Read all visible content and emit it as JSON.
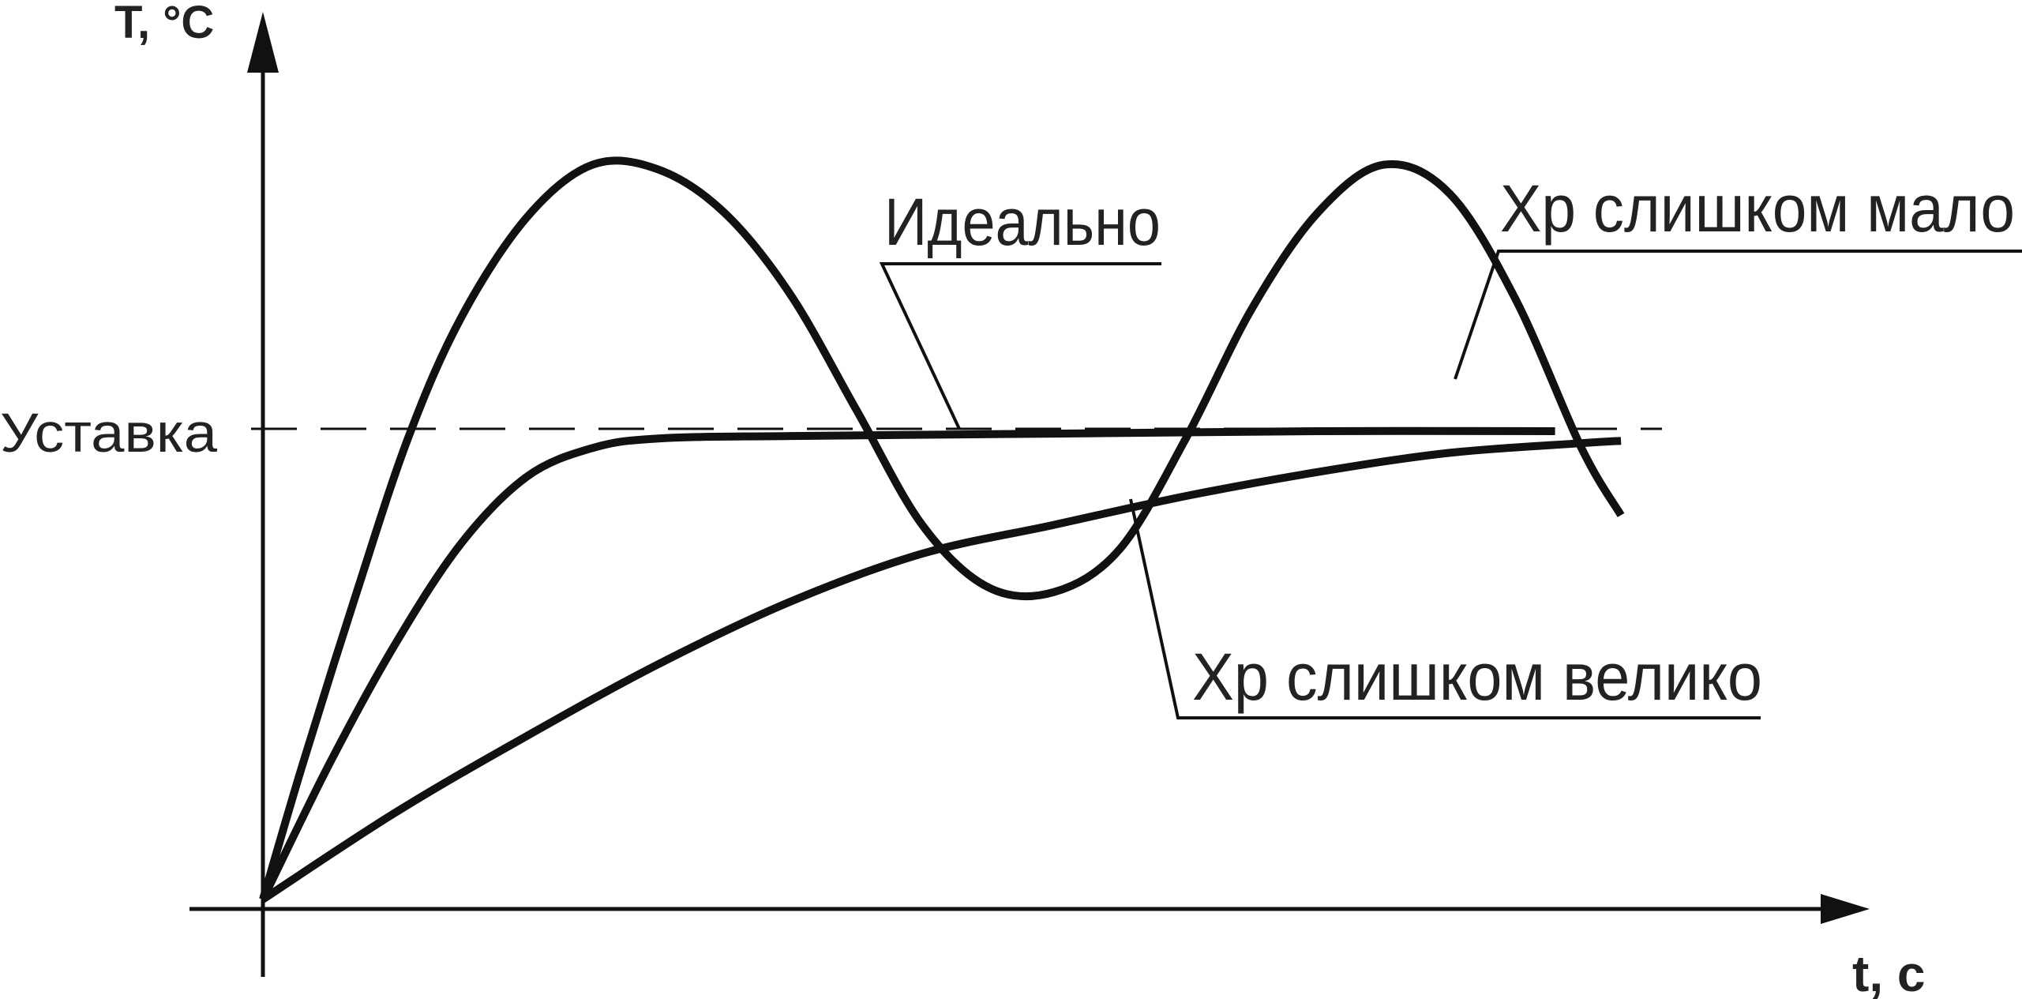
{
  "chart_data": {
    "type": "line",
    "ylabel": "T, °C",
    "xlabel": "t, с",
    "setpoint": {
      "label": "Уставка",
      "y": 1.0,
      "style": "dashed"
    },
    "x_range": [
      0,
      10
    ],
    "y_range": [
      0,
      1.8
    ],
    "grid": false,
    "series": [
      {
        "name": "Идеально",
        "stroke_width": 10,
        "points": [
          [
            0,
            0.02
          ],
          [
            0.5,
            0.3
          ],
          [
            1.0,
            0.55
          ],
          [
            1.5,
            0.76
          ],
          [
            2.0,
            0.9
          ],
          [
            2.5,
            0.96
          ],
          [
            3.0,
            0.98
          ],
          [
            4.0,
            0.985
          ],
          [
            6.0,
            0.99
          ],
          [
            8.0,
            0.995
          ],
          [
            9.8,
            0.995
          ]
        ]
      },
      {
        "name": "Хр слишком мало",
        "stroke_width": 10,
        "points": [
          [
            0,
            0.02
          ],
          [
            0.3,
            0.3
          ],
          [
            0.7,
            0.65
          ],
          [
            1.1,
            0.98
          ],
          [
            1.5,
            1.23
          ],
          [
            2.0,
            1.44
          ],
          [
            2.5,
            1.55
          ],
          [
            3.0,
            1.54
          ],
          [
            3.5,
            1.45
          ],
          [
            4.0,
            1.28
          ],
          [
            4.5,
            1.04
          ],
          [
            5.0,
            0.8
          ],
          [
            5.5,
            0.67
          ],
          [
            6.0,
            0.66
          ],
          [
            6.5,
            0.75
          ],
          [
            7.0,
            0.98
          ],
          [
            7.5,
            1.25
          ],
          [
            8.0,
            1.45
          ],
          [
            8.5,
            1.55
          ],
          [
            9.0,
            1.49
          ],
          [
            9.5,
            1.27
          ],
          [
            10.0,
            0.96
          ],
          [
            10.3,
            0.82
          ]
        ]
      },
      {
        "name": "Хр слишком велико",
        "stroke_width": 10,
        "points": [
          [
            0,
            0.02
          ],
          [
            1.0,
            0.2
          ],
          [
            2.0,
            0.36
          ],
          [
            3.0,
            0.51
          ],
          [
            4.0,
            0.64
          ],
          [
            5.0,
            0.74
          ],
          [
            6.0,
            0.8
          ],
          [
            7.0,
            0.86
          ],
          [
            8.0,
            0.91
          ],
          [
            9.0,
            0.95
          ],
          [
            10.0,
            0.97
          ],
          [
            10.3,
            0.975
          ]
        ]
      }
    ],
    "annotations": [
      {
        "text": "Идеально",
        "series": "Идеально"
      },
      {
        "text": "Хр слишком мало",
        "series": "Хр слишком мало"
      },
      {
        "text": "Хр слишком велико",
        "series": "Хр слишком велико"
      }
    ]
  }
}
